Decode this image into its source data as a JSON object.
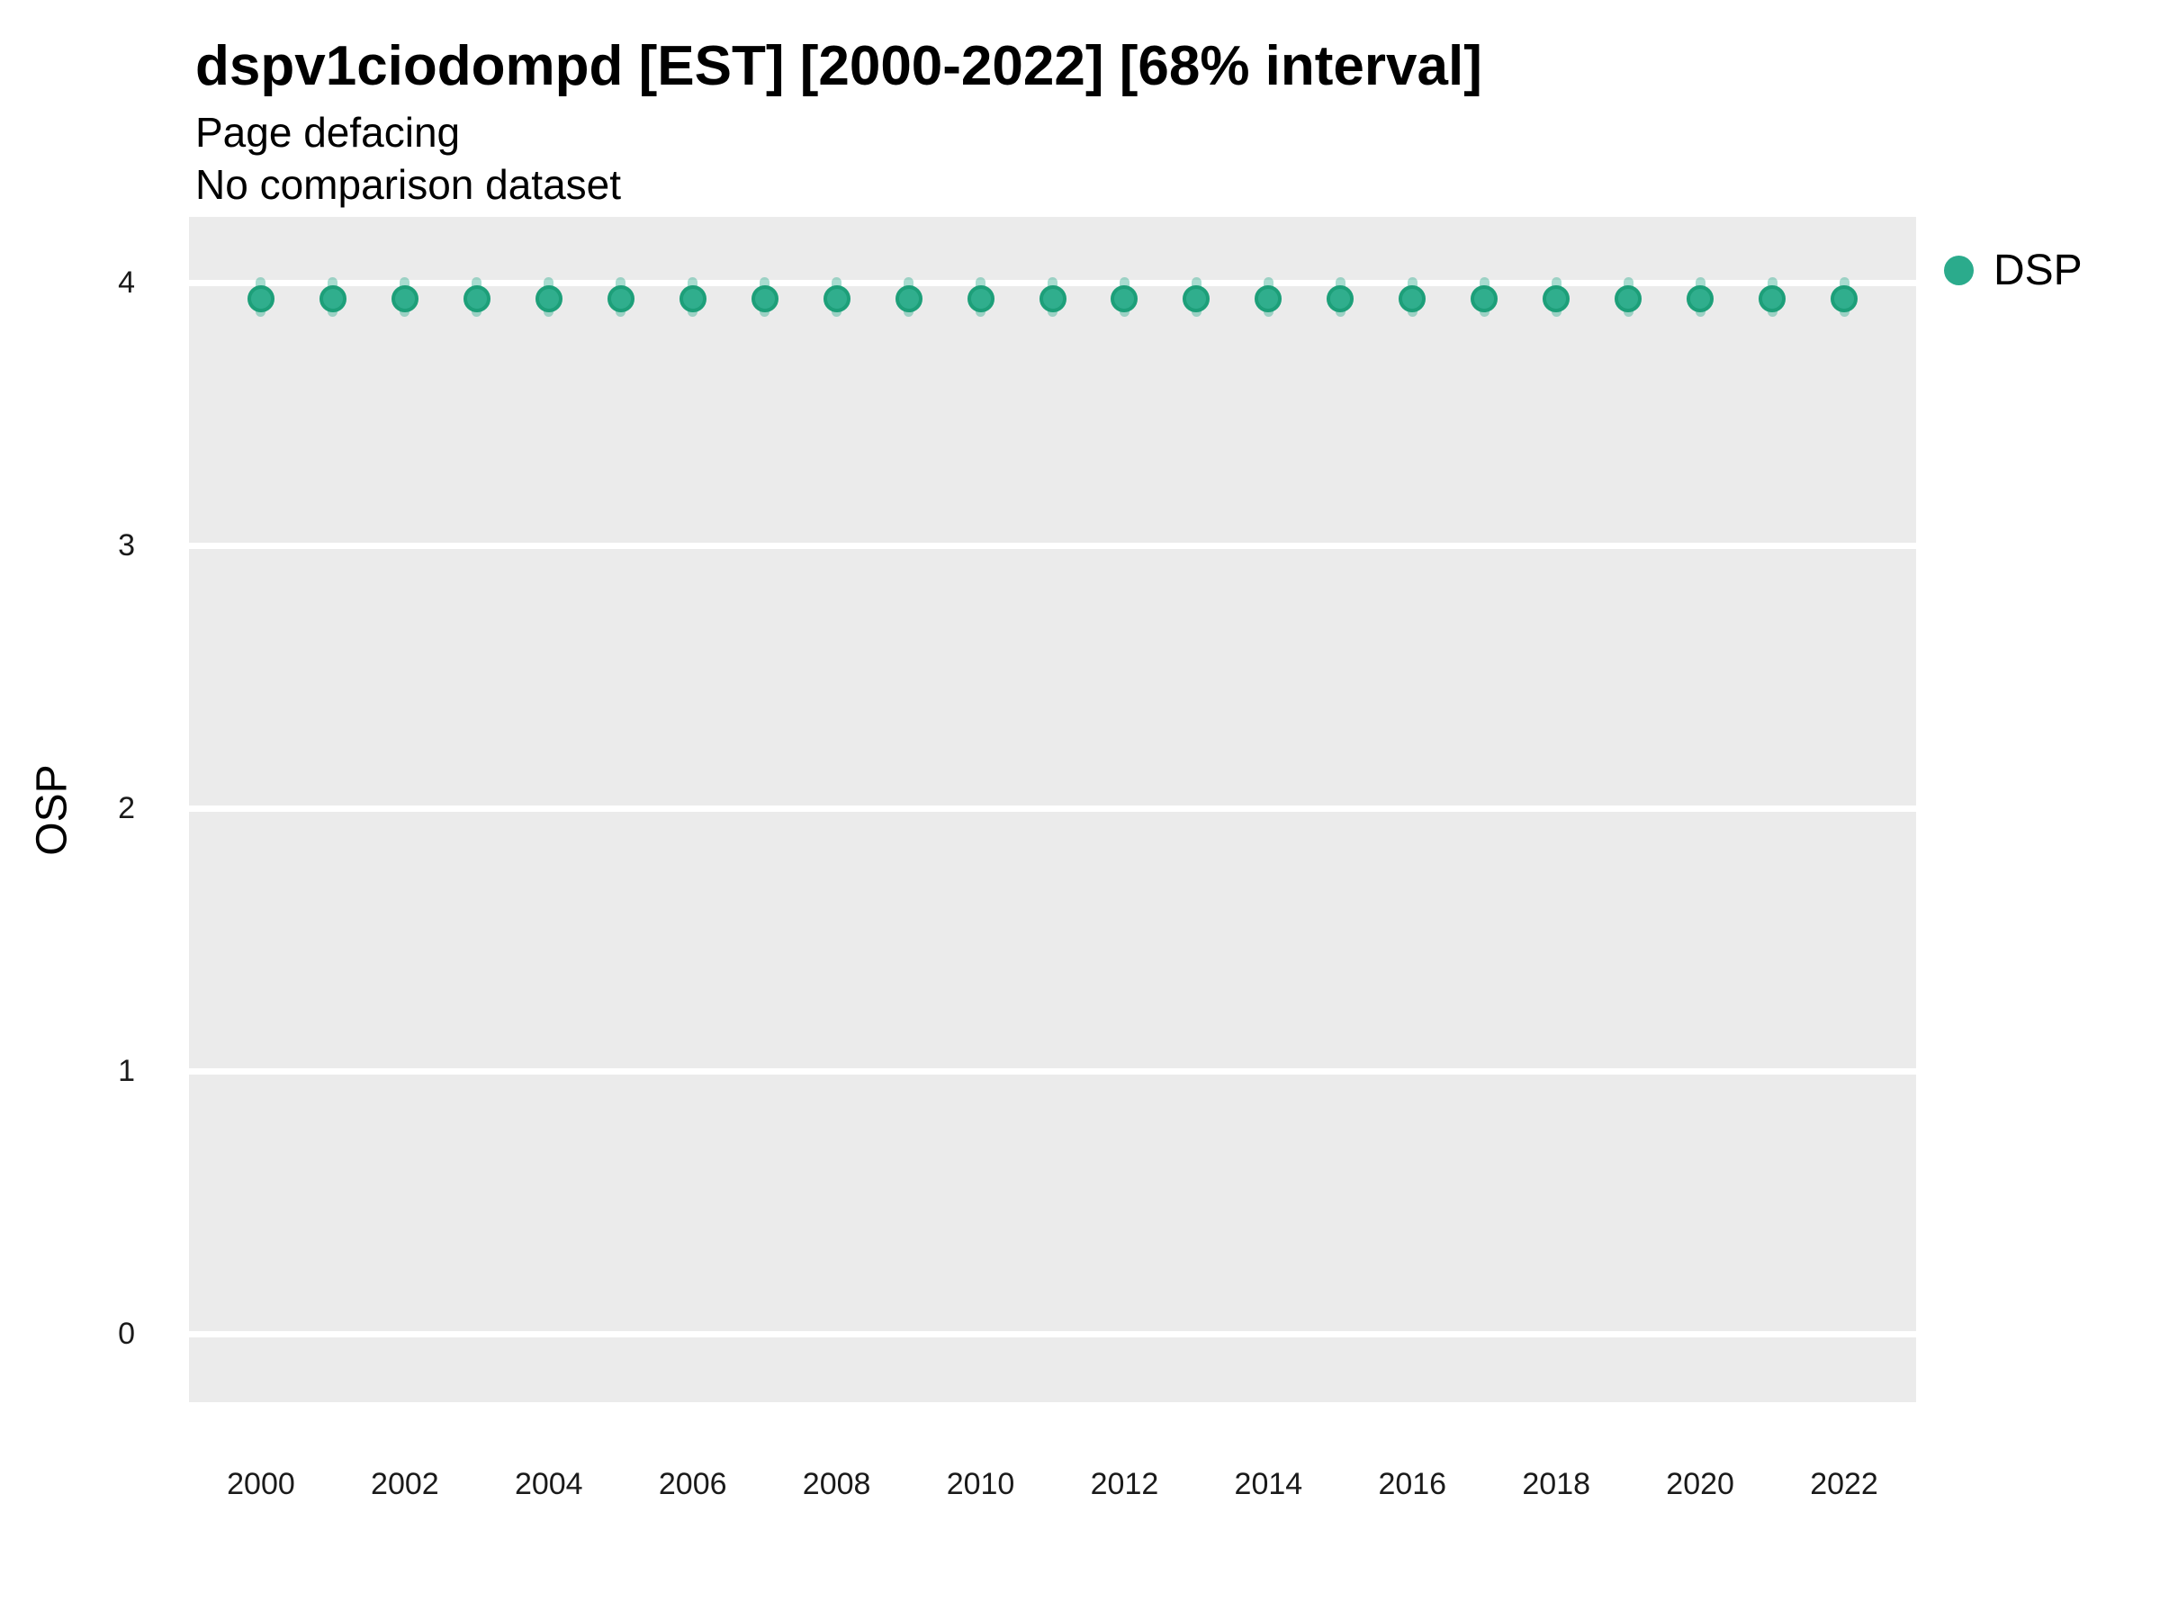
{
  "header": {
    "title": "dspv1ciodompd [EST] [2000-2022] [68% interval]",
    "subtitle1": "Page defacing",
    "subtitle2": "No comparison dataset"
  },
  "y_axis": {
    "label": "OSP"
  },
  "legend": {
    "position": "right",
    "items": [
      {
        "label": "DSP",
        "color": "#2bab8c"
      }
    ]
  },
  "style": {
    "panel_background": "#ebebeb",
    "gridline_color": "#ffffff",
    "point_fill": "#30ae8d",
    "point_stroke": "#1d9f79",
    "interval_color": "#2fae8e",
    "text_color": "#000000"
  },
  "chart_data": {
    "type": "scatter",
    "title": "dspv1ciodompd [EST] [2000-2022] [68% interval]",
    "subtitle": [
      "Page defacing",
      "No comparison dataset"
    ],
    "xlabel": "",
    "ylabel": "OSP",
    "interval_level": "68%",
    "grid": "horizontal-major-only",
    "legend_position": "right",
    "x": [
      2000,
      2001,
      2002,
      2003,
      2004,
      2005,
      2006,
      2007,
      2008,
      2009,
      2010,
      2011,
      2012,
      2013,
      2014,
      2015,
      2016,
      2017,
      2018,
      2019,
      2020,
      2021,
      2022
    ],
    "series": [
      {
        "name": "DSP",
        "values": [
          3.94,
          3.94,
          3.94,
          3.94,
          3.94,
          3.94,
          3.94,
          3.94,
          3.94,
          3.94,
          3.94,
          3.94,
          3.94,
          3.94,
          3.94,
          3.94,
          3.94,
          3.94,
          3.94,
          3.94,
          3.94,
          3.94,
          3.94
        ],
        "interval_low": [
          3.87,
          3.87,
          3.87,
          3.87,
          3.87,
          3.87,
          3.87,
          3.87,
          3.87,
          3.87,
          3.87,
          3.87,
          3.87,
          3.87,
          3.87,
          3.87,
          3.87,
          3.87,
          3.87,
          3.87,
          3.87,
          3.87,
          3.87
        ],
        "interval_high": [
          4.02,
          4.02,
          4.02,
          4.02,
          4.02,
          4.02,
          4.02,
          4.02,
          4.02,
          4.02,
          4.02,
          4.02,
          4.02,
          4.02,
          4.02,
          4.02,
          4.02,
          4.02,
          4.02,
          4.02,
          4.02,
          4.02,
          4.02
        ]
      }
    ],
    "xlim": [
      1999,
      2023
    ],
    "ylim": [
      -0.26,
      4.25
    ],
    "xticks": [
      2000,
      2002,
      2004,
      2006,
      2008,
      2010,
      2012,
      2014,
      2016,
      2018,
      2020,
      2022
    ],
    "yticks": [
      0,
      1,
      2,
      3,
      4
    ]
  }
}
